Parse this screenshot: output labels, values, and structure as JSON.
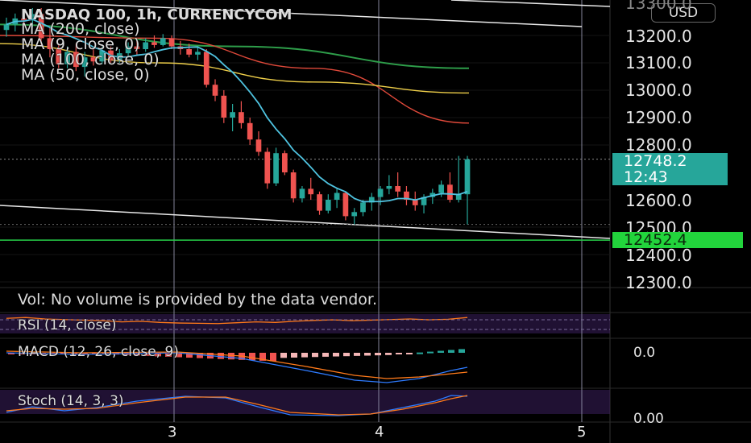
{
  "header": {
    "title": "NASDAQ 100, 1h, CURRENCYCOM",
    "currency_button": "USD"
  },
  "legend": {
    "ma200": "MA (200, close)",
    "ma9": "MA (9, close, 0)",
    "ma100": "MA (100, close, 0)",
    "ma50": "MA (50, close, 0)"
  },
  "price_axis": {
    "ticks": [
      "13200.0",
      "13100.0",
      "13000.0",
      "12900.0",
      "12800.0",
      "12600.0",
      "12500.0",
      "12400.0",
      "12300.0"
    ],
    "top_partial": "13300.0"
  },
  "price_tags": {
    "current_price": "12748.2",
    "countdown": "12:43",
    "support_level": "12452.4"
  },
  "panes": {
    "volume_note": "Vol: No volume is provided by the data vendor.",
    "rsi_label": "RSI (14, close)",
    "macd_label": "MACD (12, 26, close, 9)",
    "macd_zero": "0.0",
    "stoch_label": "Stoch (14, 3, 3)",
    "stoch_zero": "0.00"
  },
  "time_axis": {
    "labels": [
      "3",
      "4",
      "5"
    ]
  },
  "colors": {
    "up": "#26a69a",
    "down": "#ef5350",
    "ma9": "#4fc3e0",
    "ma50": "#f0d04a",
    "ma100": "#e0493a",
    "ma200": "#2e9e4a",
    "support": "#27d04a",
    "price_tag": "#26a69a",
    "support_tag": "#22d43c",
    "grid_vertical": "#8a8aa0",
    "stoch_k": "#2e7bff",
    "stoch_d": "#ff7a1a",
    "macd_line": "#2e7bff",
    "signal_line": "#ff7a1a",
    "rsi_line": "#ff7a1a",
    "pane_band": "#3a1f5c"
  },
  "chart_data": {
    "type": "candlestick",
    "symbol": "NASDAQ 100",
    "timeframe": "1h",
    "ylim": [
      12280,
      13300
    ],
    "candles": [
      {
        "o": 13220,
        "h": 13265,
        "l": 13195,
        "c": 13240
      },
      {
        "o": 13240,
        "h": 13280,
        "l": 13215,
        "c": 13262
      },
      {
        "o": 13262,
        "h": 13290,
        "l": 13240,
        "c": 13255
      },
      {
        "o": 13255,
        "h": 13300,
        "l": 13230,
        "c": 13278
      },
      {
        "o": 13278,
        "h": 13300,
        "l": 13160,
        "c": 13190
      },
      {
        "o": 13190,
        "h": 13230,
        "l": 13120,
        "c": 13150
      },
      {
        "o": 13150,
        "h": 13170,
        "l": 13080,
        "c": 13095
      },
      {
        "o": 13095,
        "h": 13160,
        "l": 13080,
        "c": 13140
      },
      {
        "o": 13140,
        "h": 13170,
        "l": 13070,
        "c": 13085
      },
      {
        "o": 13085,
        "h": 13140,
        "l": 13050,
        "c": 13120
      },
      {
        "o": 13120,
        "h": 13150,
        "l": 13090,
        "c": 13105
      },
      {
        "o": 13105,
        "h": 13160,
        "l": 13095,
        "c": 13145
      },
      {
        "o": 13145,
        "h": 13160,
        "l": 13100,
        "c": 13110
      },
      {
        "o": 13110,
        "h": 13150,
        "l": 13100,
        "c": 13135
      },
      {
        "o": 13135,
        "h": 13175,
        "l": 13120,
        "c": 13160
      },
      {
        "o": 13160,
        "h": 13180,
        "l": 13130,
        "c": 13150
      },
      {
        "o": 13150,
        "h": 13190,
        "l": 13140,
        "c": 13175
      },
      {
        "o": 13175,
        "h": 13200,
        "l": 13155,
        "c": 13165
      },
      {
        "o": 13165,
        "h": 13205,
        "l": 13160,
        "c": 13190
      },
      {
        "o": 13190,
        "h": 13200,
        "l": 13150,
        "c": 13160
      },
      {
        "o": 13160,
        "h": 13180,
        "l": 13130,
        "c": 13150
      },
      {
        "o": 13150,
        "h": 13170,
        "l": 13120,
        "c": 13130
      },
      {
        "o": 13130,
        "h": 13160,
        "l": 13110,
        "c": 13140
      },
      {
        "o": 13140,
        "h": 13150,
        "l": 13010,
        "c": 13020
      },
      {
        "o": 13020,
        "h": 13040,
        "l": 12960,
        "c": 12980
      },
      {
        "o": 12980,
        "h": 13000,
        "l": 12880,
        "c": 12900
      },
      {
        "o": 12900,
        "h": 12950,
        "l": 12850,
        "c": 12920
      },
      {
        "o": 12920,
        "h": 12960,
        "l": 12860,
        "c": 12880
      },
      {
        "o": 12880,
        "h": 12900,
        "l": 12800,
        "c": 12820
      },
      {
        "o": 12820,
        "h": 12850,
        "l": 12760,
        "c": 12775
      },
      {
        "o": 12775,
        "h": 12790,
        "l": 12640,
        "c": 12660
      },
      {
        "o": 12660,
        "h": 12790,
        "l": 12650,
        "c": 12770
      },
      {
        "o": 12770,
        "h": 12780,
        "l": 12690,
        "c": 12700
      },
      {
        "o": 12700,
        "h": 12710,
        "l": 12590,
        "c": 12605
      },
      {
        "o": 12605,
        "h": 12650,
        "l": 12590,
        "c": 12640
      },
      {
        "o": 12640,
        "h": 12680,
        "l": 12600,
        "c": 12620
      },
      {
        "o": 12620,
        "h": 12630,
        "l": 12545,
        "c": 12560
      },
      {
        "o": 12560,
        "h": 12620,
        "l": 12550,
        "c": 12600
      },
      {
        "o": 12600,
        "h": 12640,
        "l": 12570,
        "c": 12625
      },
      {
        "o": 12625,
        "h": 12630,
        "l": 12525,
        "c": 12540
      },
      {
        "o": 12540,
        "h": 12570,
        "l": 12510,
        "c": 12555
      },
      {
        "o": 12555,
        "h": 12600,
        "l": 12540,
        "c": 12590
      },
      {
        "o": 12590,
        "h": 12625,
        "l": 12560,
        "c": 12610
      },
      {
        "o": 12610,
        "h": 12650,
        "l": 12580,
        "c": 12640
      },
      {
        "o": 12640,
        "h": 12690,
        "l": 12620,
        "c": 12650
      },
      {
        "o": 12650,
        "h": 12700,
        "l": 12610,
        "c": 12630
      },
      {
        "o": 12630,
        "h": 12650,
        "l": 12580,
        "c": 12600
      },
      {
        "o": 12600,
        "h": 12630,
        "l": 12560,
        "c": 12580
      },
      {
        "o": 12580,
        "h": 12620,
        "l": 12550,
        "c": 12610
      },
      {
        "o": 12610,
        "h": 12640,
        "l": 12585,
        "c": 12625
      },
      {
        "o": 12625,
        "h": 12670,
        "l": 12610,
        "c": 12655
      },
      {
        "o": 12655,
        "h": 12700,
        "l": 12590,
        "c": 12600
      },
      {
        "o": 12600,
        "h": 12760,
        "l": 12590,
        "c": 12620
      },
      {
        "o": 12620,
        "h": 12760,
        "l": 12510,
        "c": 12748
      }
    ],
    "moving_averages": {
      "ma200": [
        13240,
        13160,
        13080
      ],
      "ma100": [
        13200,
        13190,
        13080,
        12880
      ],
      "ma50": [
        13170,
        13100,
        13030,
        12990
      ],
      "ma9": [
        13210,
        13190,
        13110,
        12950,
        12780,
        12650,
        12580,
        12610,
        12660
      ]
    },
    "support_level": 12452.4,
    "current_price": 12748.2
  }
}
